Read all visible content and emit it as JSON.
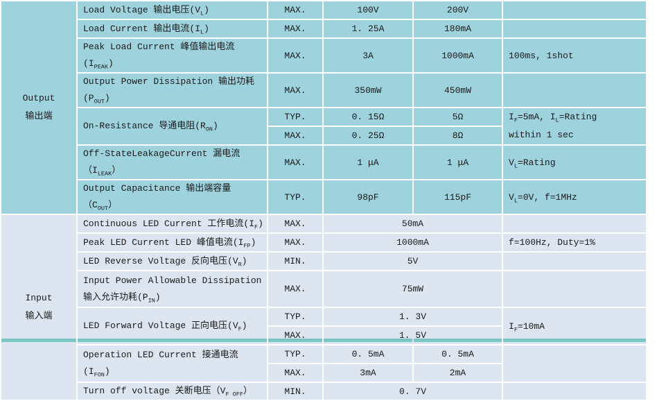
{
  "colors": {
    "output_section_bg": "#9ed2dc",
    "input_section_bg": "#dce5f0",
    "gridline": "#ffffff",
    "text": "#1a1a1a",
    "bottom_strip": "#7cc6c6"
  },
  "output": {
    "category": {
      "en": "Output",
      "zh": "输出端"
    },
    "load_voltage": {
      "param": [
        {
          "t": "Load Voltage 输出电压(V"
        },
        {
          "s": "L"
        },
        {
          "t": ")"
        }
      ],
      "spec": "MAX.",
      "v1": "100V",
      "v2": "200V"
    },
    "load_current": {
      "param": [
        {
          "t": "Load Current 输出电流(I"
        },
        {
          "s": "L"
        },
        {
          "t": ")"
        }
      ],
      "spec": "MAX.",
      "v1": "1. 25A",
      "v2": "180mA"
    },
    "peak_load_current": {
      "param": [
        {
          "t": "Peak Load Current 峰值输出电流(I"
        },
        {
          "s": "PEAK"
        },
        {
          "t": ")"
        }
      ],
      "spec": "MAX.",
      "v1": "3A",
      "v2": "1000mA",
      "cond": [
        {
          "t": "100ms, 1shot"
        }
      ]
    },
    "output_power_dissipation": {
      "param": [
        {
          "t": "Output Power Dissipation 输出功耗(P"
        },
        {
          "s": "OUT"
        },
        {
          "t": ")"
        }
      ],
      "spec": "MAX.",
      "v1": "350mW",
      "v2": "450mW"
    },
    "on_resistance": {
      "param": [
        {
          "t": "On-Resistance 导通电阻(R"
        },
        {
          "s": "ON"
        },
        {
          "t": ")"
        }
      ],
      "typ": {
        "spec": "TYP.",
        "v1": "0. 15Ω",
        "v2": "5Ω"
      },
      "max": {
        "spec": "MAX.",
        "v1": "0. 25Ω",
        "v2": "8Ω"
      },
      "cond_line1": [
        {
          "t": "I"
        },
        {
          "s": "F"
        },
        {
          "t": "=5mA, I"
        },
        {
          "s": "L"
        },
        {
          "t": "=Rating"
        }
      ],
      "cond_line2": [
        {
          "t": "within 1 sec"
        }
      ]
    },
    "off_state_leakage": {
      "param": [
        {
          "t": "Off-StateLeakageCurrent 漏电流（I"
        },
        {
          "s": "LEAK"
        },
        {
          "t": "）"
        }
      ],
      "spec": "MAX.",
      "v1": "1 μA",
      "v2": "1 μA",
      "cond": [
        {
          "t": "V"
        },
        {
          "s": "L"
        },
        {
          "t": "=Rating"
        }
      ]
    },
    "output_capacitance": {
      "param": [
        {
          "t": "Output Capacitance 输出端容量（C"
        },
        {
          "s": "OUT"
        },
        {
          "t": "）"
        }
      ],
      "spec": "TYP.",
      "v1": "98pF",
      "v2": "115pF",
      "cond": [
        {
          "t": "V"
        },
        {
          "s": "L"
        },
        {
          "t": "=0V, f=1MHz"
        }
      ]
    }
  },
  "input": {
    "category": {
      "en": "Input",
      "zh": "输入端"
    },
    "continuous_led_current": {
      "param": [
        {
          "t": "Continuous LED Current 工作电流(I"
        },
        {
          "s": "F"
        },
        {
          "t": ")"
        }
      ],
      "spec": "MAX.",
      "v": "50mA"
    },
    "peak_led_current": {
      "param": [
        {
          "t": "Peak LED Current LED 峰值电流(I"
        },
        {
          "s": "FP"
        },
        {
          "t": ")"
        }
      ],
      "spec": "MAX.",
      "v": "1000mA",
      "cond": [
        {
          "t": "f=100Hz, Duty=1%"
        }
      ]
    },
    "led_reverse_voltage": {
      "param": [
        {
          "t": "LED Reverse Voltage 反向电压(V"
        },
        {
          "s": "R"
        },
        {
          "t": ")"
        }
      ],
      "spec": "MIN.",
      "v": "5V"
    },
    "input_power_dissipation": {
      "param": [
        {
          "t": "Input Power Allowable Dissipation\n输入允许功耗(P"
        },
        {
          "s": "IN"
        },
        {
          "t": ")"
        }
      ],
      "spec": "MAX.",
      "v": "75mW"
    },
    "led_forward_voltage": {
      "param": [
        {
          "t": "LED Forward Voltage 正向电压(V"
        },
        {
          "s": "F"
        },
        {
          "t": ")"
        }
      ],
      "typ": {
        "spec": "TYP.",
        "v": "1. 3V"
      },
      "max": {
        "spec": "MAX.",
        "v": "1. 5V"
      },
      "cond": [
        {
          "t": "I"
        },
        {
          "s": "F"
        },
        {
          "t": "=10mA"
        }
      ]
    },
    "operation_led_current": {
      "param": [
        {
          "t": "Operation LED Current 接通电流(I"
        },
        {
          "s": "FON"
        },
        {
          "t": ")"
        }
      ],
      "typ": {
        "spec": "TYP.",
        "v1": "0. 5mA",
        "v2": "0. 5mA"
      },
      "max": {
        "spec": "MAX.",
        "v1": "3mA",
        "v2": "2mA"
      }
    },
    "turn_off_voltage": {
      "param": [
        {
          "t": "Turn off voltage 关断电压（V"
        },
        {
          "s": "F OFF"
        },
        {
          "t": "）"
        }
      ],
      "spec": "MIN.",
      "v": "0. 7V"
    }
  }
}
